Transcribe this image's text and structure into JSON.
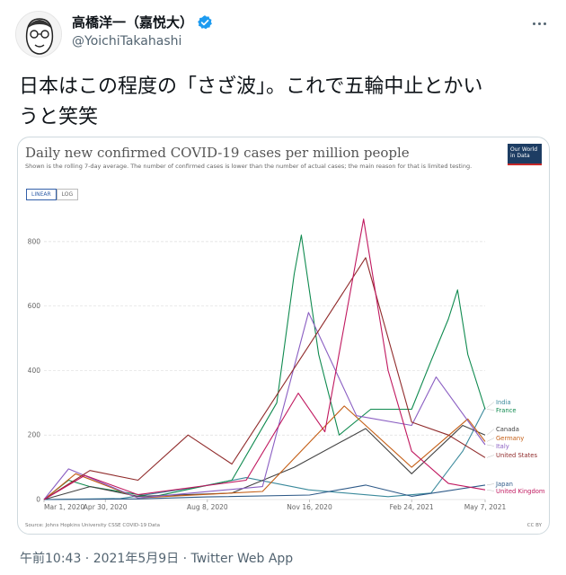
{
  "tweet": {
    "display_name": "高橋洋一（嘉悦大）",
    "handle": "@YoichiTakahashi",
    "text_line1": "日本はこの程度の「さざ波」。これで五輪中止とかい",
    "text_line2": "うと笑笑",
    "meta": "午前10:43 · 2021年5月9日 · Twitter Web App"
  },
  "card": {
    "title": "Daily new confirmed COVID-19 cases per million people",
    "subtitle": "Shown is the rolling 7-day average. The number of confirmed cases is lower than the number of actual cases; the main reason for that is limited testing.",
    "logo_text": "Our World in Data",
    "toggle_linear": "LINEAR",
    "toggle_log": "LOG",
    "source": "Source: Johns Hopkins University CSSE COVID-19 Data",
    "license": "CC BY"
  },
  "chart_data": {
    "type": "line",
    "title": "Daily new confirmed COVID-19 cases per million people",
    "xlabel": "",
    "ylabel": "",
    "x_ticks": [
      "Mar 1, 2020",
      "Apr 30, 2020",
      "Aug 8, 2020",
      "Nov 16, 2020",
      "Feb 24, 2021",
      "May 7, 2021"
    ],
    "y_ticks": [
      0,
      200,
      400,
      600,
      800
    ],
    "ylim": [
      0,
      900
    ],
    "grid": true,
    "legend_placement": "right",
    "series": [
      {
        "name": "India",
        "color": "#3b8a9c",
        "x": [
          "2020-03-01",
          "2020-05-15",
          "2020-08-01",
          "2020-09-15",
          "2020-11-15",
          "2021-02-01",
          "2021-03-15",
          "2021-04-15",
          "2021-05-07"
        ],
        "values": [
          0,
          3,
          40,
          68,
          30,
          9,
          20,
          150,
          285
        ]
      },
      {
        "name": "France",
        "color": "#0f8a4f",
        "x": [
          "2020-03-01",
          "2020-03-25",
          "2020-04-15",
          "2020-06-15",
          "2020-09-01",
          "2020-10-15",
          "2020-11-01",
          "2020-11-08",
          "2020-11-25",
          "2020-12-15",
          "2021-01-15",
          "2021-02-24",
          "2021-03-15",
          "2021-04-01",
          "2021-04-10",
          "2021-04-20",
          "2021-05-07"
        ],
        "values": [
          0,
          60,
          40,
          8,
          60,
          300,
          700,
          820,
          450,
          200,
          280,
          280,
          430,
          560,
          650,
          450,
          280
        ]
      },
      {
        "name": "Canada",
        "color": "#444444",
        "x": [
          "2020-03-01",
          "2020-04-15",
          "2020-06-01",
          "2020-09-01",
          "2020-11-01",
          "2021-01-10",
          "2021-02-24",
          "2021-04-15",
          "2021-05-07"
        ],
        "values": [
          0,
          40,
          10,
          20,
          100,
          220,
          80,
          230,
          200
        ]
      },
      {
        "name": "Germany",
        "color": "#c45e15",
        "x": [
          "2020-03-01",
          "2020-04-01",
          "2020-06-01",
          "2020-10-01",
          "2020-12-20",
          "2021-02-24",
          "2021-04-20",
          "2021-05-07"
        ],
        "values": [
          0,
          80,
          5,
          25,
          290,
          100,
          250,
          180
        ]
      },
      {
        "name": "Italy",
        "color": "#8a5ec2",
        "x": [
          "2020-03-01",
          "2020-03-25",
          "2020-06-01",
          "2020-10-01",
          "2020-11-15",
          "2021-01-01",
          "2021-02-24",
          "2021-03-20",
          "2021-05-07"
        ],
        "values": [
          0,
          95,
          5,
          40,
          580,
          260,
          230,
          380,
          170
        ]
      },
      {
        "name": "United States",
        "color": "#902b2b",
        "x": [
          "2020-03-01",
          "2020-04-15",
          "2020-06-01",
          "2020-07-20",
          "2020-09-01",
          "2020-11-16",
          "2021-01-10",
          "2021-02-24",
          "2021-04-01",
          "2021-05-07"
        ],
        "values": [
          0,
          90,
          60,
          200,
          110,
          480,
          750,
          240,
          200,
          130
        ]
      },
      {
        "name": "Japan",
        "color": "#2e5a88",
        "x": [
          "2020-03-01",
          "2020-06-01",
          "2020-08-08",
          "2020-11-16",
          "2021-01-10",
          "2021-02-24",
          "2021-05-07"
        ],
        "values": [
          0,
          2,
          8,
          14,
          45,
          10,
          45
        ]
      },
      {
        "name": "United Kingdom",
        "color": "#c0185f",
        "x": [
          "2020-03-01",
          "2020-04-10",
          "2020-06-01",
          "2020-09-15",
          "2020-11-05",
          "2020-12-01",
          "2021-01-08",
          "2021-02-01",
          "2021-02-24",
          "2021-04-01",
          "2021-05-07"
        ],
        "values": [
          0,
          75,
          15,
          60,
          330,
          210,
          870,
          400,
          150,
          50,
          30
        ]
      }
    ]
  },
  "colors": {
    "text_primary": "#0f1419",
    "text_secondary": "#536471",
    "verified": "#1d9bf0",
    "owid_navy": "#1d3d63",
    "owid_red": "#c62828"
  }
}
